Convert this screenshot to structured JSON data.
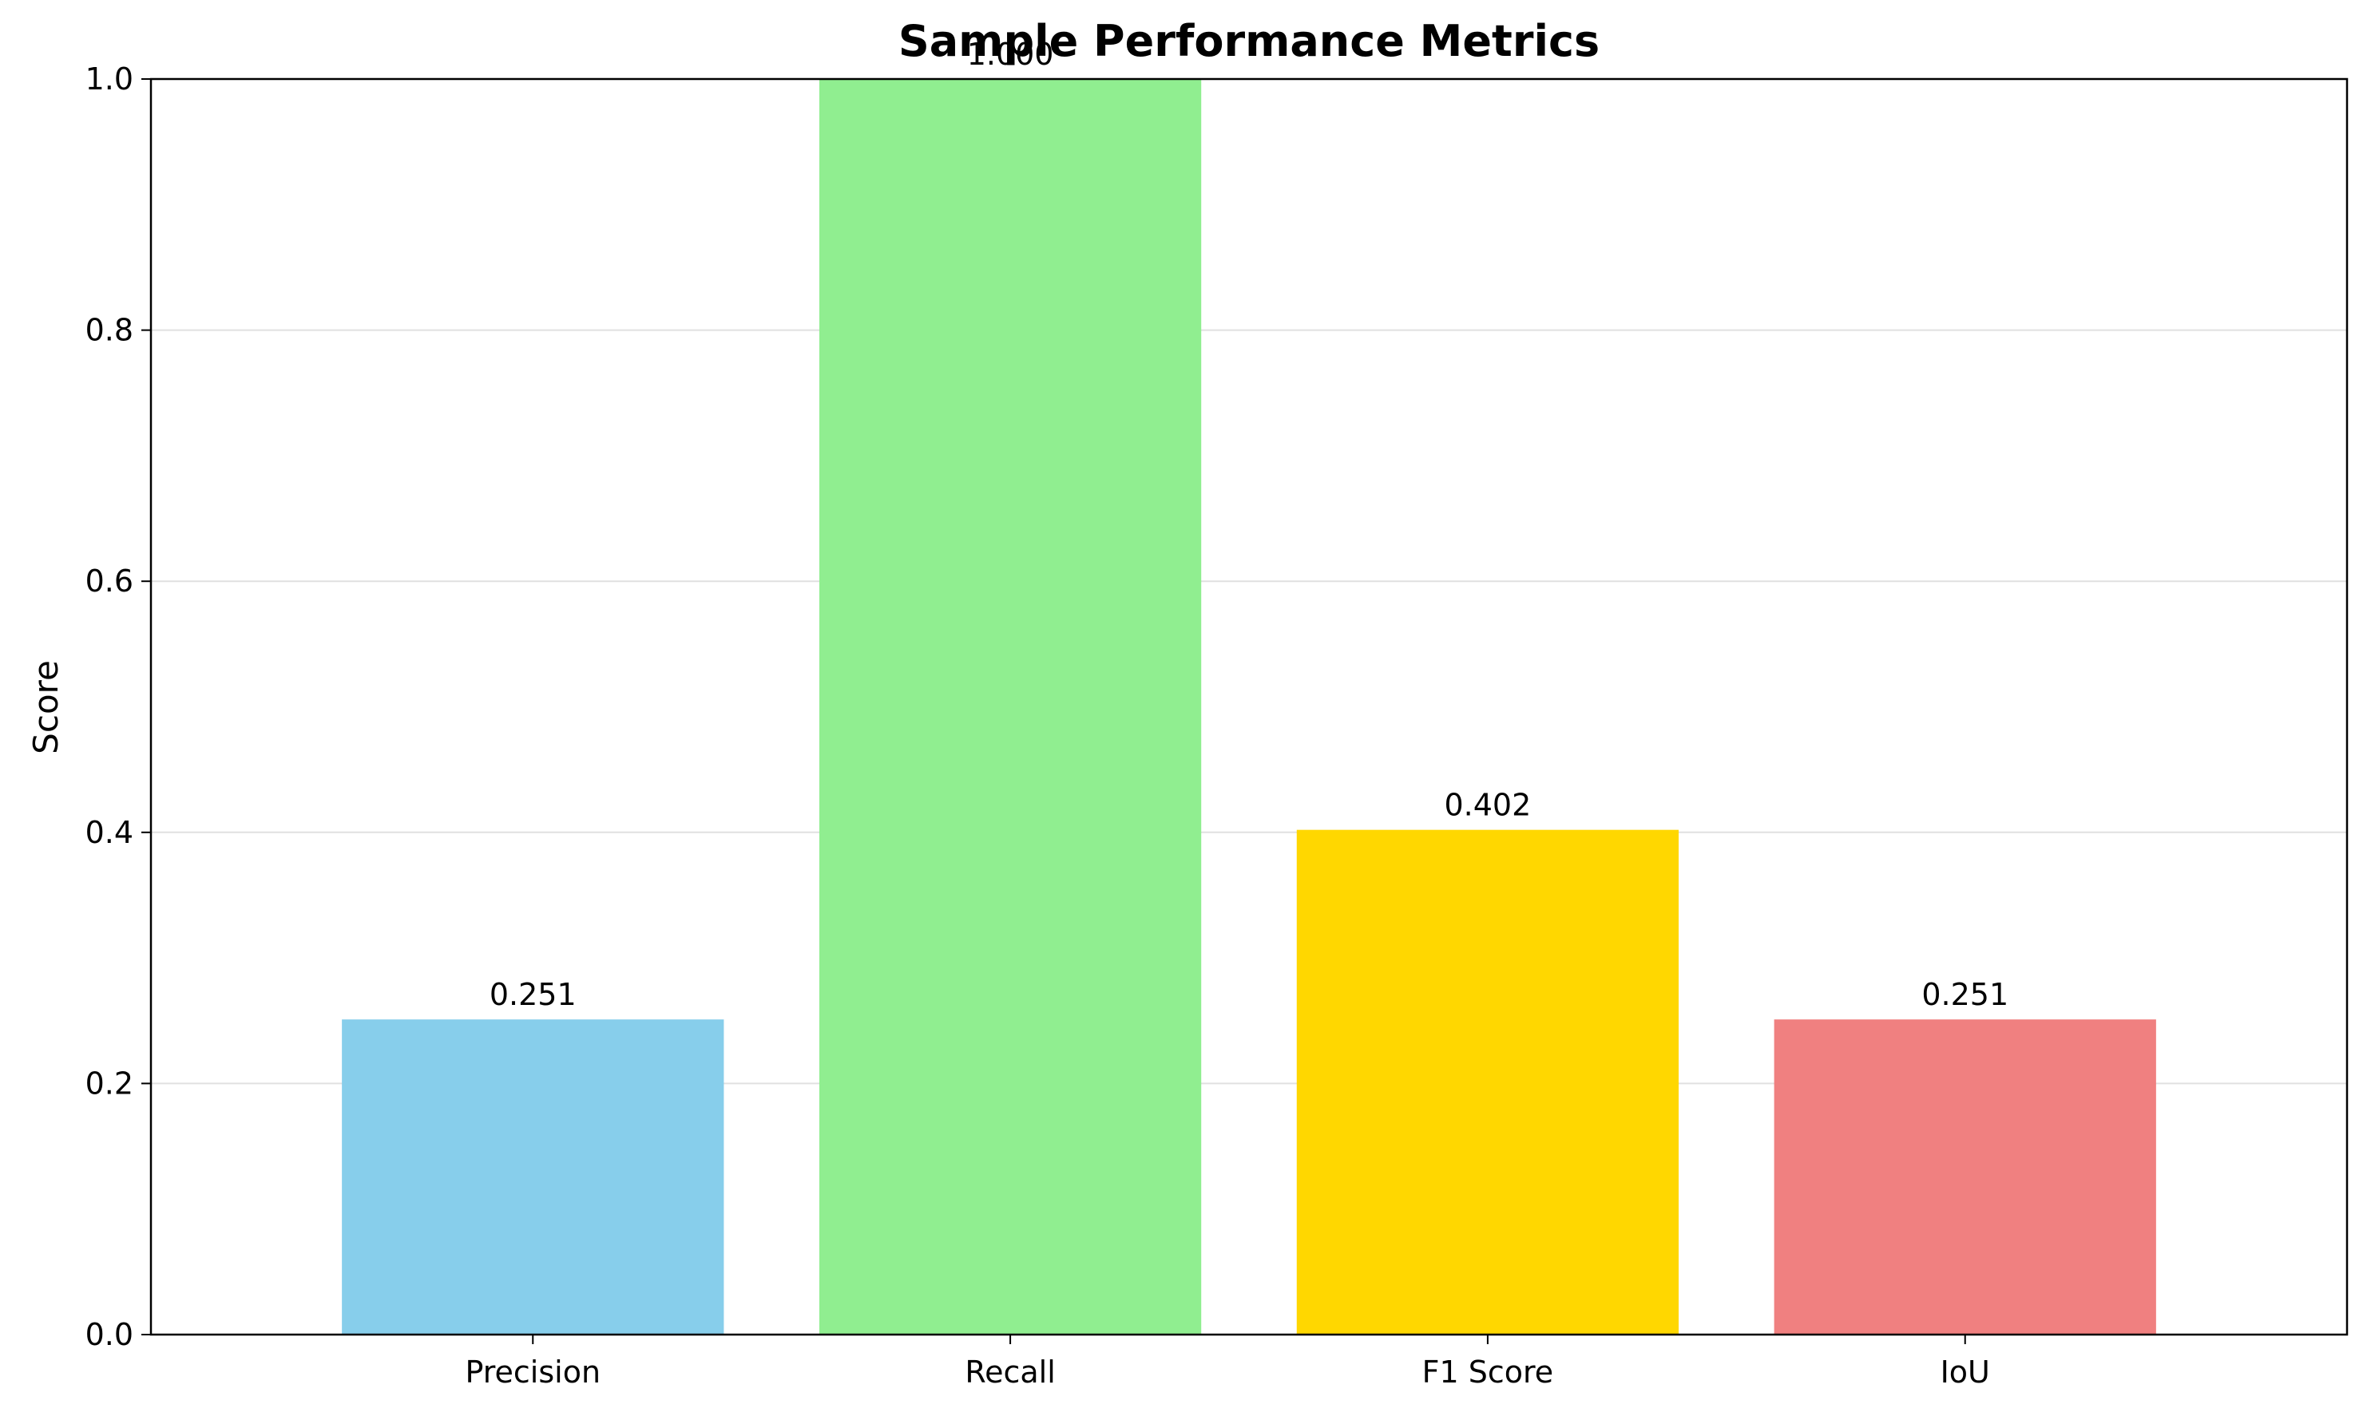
{
  "chart_data": {
    "type": "bar",
    "title": "Sample Performance Metrics",
    "xlabel": "",
    "ylabel": "Score",
    "categories": [
      "Precision",
      "Recall",
      "F1 Score",
      "IoU"
    ],
    "values": [
      0.251,
      1.0,
      0.402,
      0.251
    ],
    "value_labels": [
      "0.251",
      "1.000",
      "0.402",
      "0.251"
    ],
    "colors": [
      "#87CEEB",
      "#90EE90",
      "#FFD700",
      "#F08080"
    ],
    "ylim": [
      0,
      1.0
    ],
    "yticks": [
      0.0,
      0.2,
      0.4,
      0.6,
      0.8,
      1.0
    ],
    "ytick_labels": [
      "0.0",
      "0.2",
      "0.4",
      "0.6",
      "0.8",
      "1.0"
    ],
    "grid": "horizontal",
    "legend": "none"
  }
}
